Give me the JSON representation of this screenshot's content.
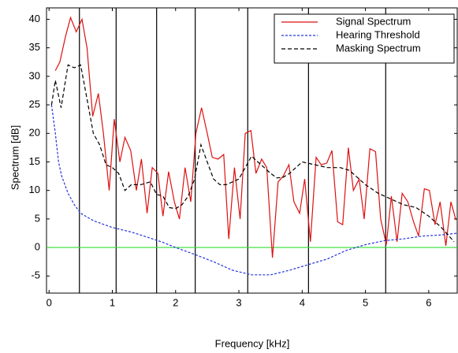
{
  "chart_data": {
    "type": "line",
    "xlabel": "Frequency [kHz]",
    "ylabel": "Spectrum [dB]",
    "xlim": [
      -0.04,
      6.45
    ],
    "ylim": [
      -8,
      42
    ],
    "xticks": [
      0,
      1,
      2,
      3,
      4,
      5,
      6
    ],
    "yticks": [
      -5,
      0,
      5,
      10,
      15,
      20,
      25,
      30,
      35,
      40
    ],
    "vlines": [
      0.48,
      1.06,
      1.7,
      2.31,
      3.14,
      4.1,
      5.32
    ],
    "vline_color": "#000000",
    "hline": 0,
    "hline_color": "#33dd33",
    "legend": "upper right",
    "series": [
      {
        "name": "Signal Spectrum",
        "color": "#dd1111",
        "dash": "none",
        "x": [
          0.1,
          0.17,
          0.26,
          0.34,
          0.43,
          0.52,
          0.6,
          0.69,
          0.78,
          0.86,
          0.95,
          1.03,
          1.12,
          1.2,
          1.29,
          1.38,
          1.46,
          1.55,
          1.63,
          1.72,
          1.8,
          1.89,
          1.98,
          2.06,
          2.15,
          2.24,
          2.32,
          2.41,
          2.5,
          2.58,
          2.67,
          2.76,
          2.84,
          2.93,
          3.02,
          3.1,
          3.19,
          3.27,
          3.36,
          3.44,
          3.53,
          3.62,
          3.7,
          3.79,
          3.87,
          3.96,
          4.04,
          4.13,
          4.22,
          4.3,
          4.39,
          4.47,
          4.56,
          4.64,
          4.73,
          4.81,
          4.9,
          4.98,
          5.07,
          5.16,
          5.24,
          5.33,
          5.41,
          5.5,
          5.58,
          5.67,
          5.76,
          5.84,
          5.93,
          6.01,
          6.1,
          6.18,
          6.27,
          6.35,
          6.43
        ],
        "values": [
          31,
          32.5,
          37,
          40.3,
          37.8,
          40,
          35,
          23,
          27,
          20,
          10,
          22.5,
          15,
          19.3,
          17,
          10,
          15.5,
          6,
          14,
          13,
          5.5,
          13.3,
          8,
          5,
          14,
          8,
          20,
          24.5,
          20,
          15.8,
          15.5,
          16.3,
          1.5,
          14,
          5,
          20,
          20.5,
          13,
          15.5,
          14,
          -1.8,
          11.5,
          12.5,
          14.5,
          8,
          6,
          12,
          1,
          15.8,
          14.5,
          14.8,
          17,
          4.5,
          4,
          17.5,
          10,
          12,
          5,
          17.3,
          16.8,
          5,
          0.5,
          9,
          1,
          9.5,
          8,
          4.5,
          2,
          10.3,
          10,
          4,
          8,
          0.3,
          8,
          4.8
        ]
      },
      {
        "name": "Hearing Threshold",
        "color": "#2233dd",
        "dash": "3,2",
        "x": [
          0.04,
          0.1,
          0.15,
          0.2,
          0.3,
          0.4,
          0.5,
          0.7,
          1.0,
          1.3,
          1.5,
          1.8,
          2.0,
          2.3,
          2.6,
          2.9,
          3.2,
          3.5,
          3.8,
          4.1,
          4.4,
          4.7,
          5.0,
          5.3,
          5.6,
          5.9,
          6.2,
          6.45
        ],
        "values": [
          25,
          20,
          15,
          12.5,
          9.5,
          7.5,
          6,
          4.7,
          3.5,
          2.7,
          2,
          0.9,
          0,
          -1.2,
          -2.5,
          -4,
          -4.8,
          -4.8,
          -4,
          -3,
          -2,
          -0.5,
          0.5,
          1.2,
          1.5,
          2,
          2.2,
          2.5
        ]
      },
      {
        "name": "Masking Spectrum",
        "color": "#000000",
        "dash": "5,3",
        "x": [
          0.04,
          0.1,
          0.19,
          0.3,
          0.4,
          0.5,
          0.6,
          0.7,
          0.8,
          0.9,
          1.0,
          1.1,
          1.2,
          1.3,
          1.45,
          1.6,
          1.7,
          1.8,
          1.9,
          2.0,
          2.1,
          2.2,
          2.3,
          2.4,
          2.5,
          2.6,
          2.7,
          2.8,
          2.9,
          3.0,
          3.1,
          3.2,
          3.3,
          3.4,
          3.5,
          3.6,
          3.7,
          3.8,
          3.9,
          4.0,
          4.2,
          4.4,
          4.6,
          4.75,
          4.9,
          5.0,
          5.2,
          5.4,
          5.6,
          5.8,
          6.0,
          6.2,
          6.4
        ],
        "values": [
          25,
          29.3,
          24.5,
          32,
          31.5,
          32,
          26,
          20,
          18,
          14.5,
          14,
          13,
          10,
          11,
          11,
          11.5,
          9.3,
          9,
          7,
          6.8,
          7.5,
          9,
          12,
          18,
          15,
          12,
          11,
          11,
          11.5,
          12,
          14,
          16,
          15,
          14,
          13,
          12.2,
          12.3,
          13,
          14,
          15,
          14.5,
          14,
          14,
          13.5,
          12,
          11,
          9.5,
          8.5,
          7.5,
          7,
          5.5,
          3.5,
          1
        ]
      }
    ]
  }
}
